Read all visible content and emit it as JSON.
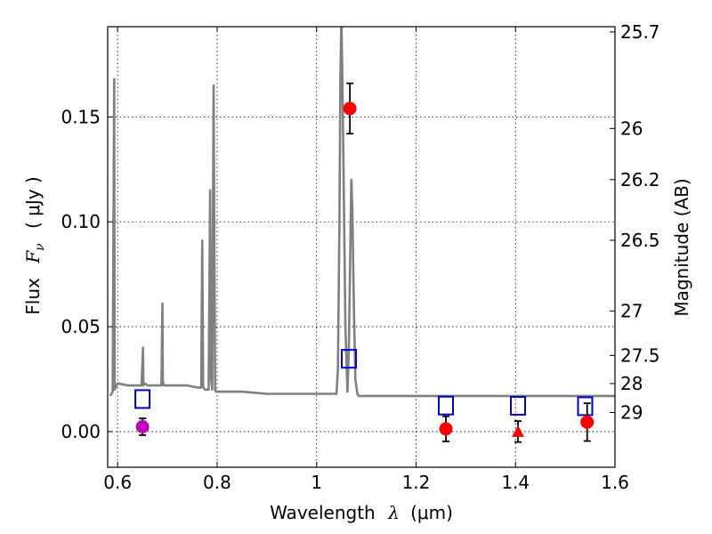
{
  "chart_data": {
    "type": "line",
    "title": "",
    "xlabel_prefix": "Wavelength",
    "xlabel_symbol": "λ",
    "xlabel_unit": "(μm)",
    "ylabel_prefix": "Flux",
    "ylabel_symbol": "F",
    "ylabel_subscript": "ν",
    "ylabel_unit": "( μJy )",
    "y2label": "Magnitude (AB)",
    "xlim": [
      0.58,
      1.6
    ],
    "ylim": [
      -0.017,
      0.193
    ],
    "grid": true,
    "x_ticks": [
      {
        "v": 0.6,
        "label": "0.6"
      },
      {
        "v": 0.8,
        "label": "0.8"
      },
      {
        "v": 1.0,
        "label": "1"
      },
      {
        "v": 1.2,
        "label": "1.2"
      },
      {
        "v": 1.4,
        "label": "1.4"
      },
      {
        "v": 1.6,
        "label": "1.6"
      }
    ],
    "y_ticks": [
      {
        "v": 0.0,
        "label": "0.00"
      },
      {
        "v": 0.05,
        "label": "0.05"
      },
      {
        "v": 0.1,
        "label": "0.10"
      },
      {
        "v": 0.15,
        "label": "0.15"
      }
    ],
    "mag_ticks": [
      {
        "v": 0.1905,
        "label": "25.7"
      },
      {
        "v": 0.1445,
        "label": "26"
      },
      {
        "v": 0.1201,
        "label": "26.2"
      },
      {
        "v": 0.0912,
        "label": "26.5"
      },
      {
        "v": 0.0575,
        "label": "27"
      },
      {
        "v": 0.0363,
        "label": "27.5"
      },
      {
        "v": 0.0229,
        "label": "28"
      },
      {
        "v": 0.0091,
        "label": "29"
      }
    ],
    "series": [
      {
        "kind": "model-spectrum",
        "color": "#808080",
        "x": [
          0.585,
          0.59,
          0.593,
          0.594,
          0.596,
          0.6,
          0.62,
          0.64,
          0.648,
          0.651,
          0.652,
          0.654,
          0.66,
          0.68,
          0.688,
          0.69,
          0.691,
          0.693,
          0.7,
          0.72,
          0.74,
          0.76,
          0.768,
          0.77,
          0.772,
          0.776,
          0.783,
          0.786,
          0.788,
          0.79,
          0.793,
          0.796,
          0.798,
          0.8,
          0.82,
          0.85,
          0.9,
          0.95,
          1.0,
          1.04,
          1.043,
          1.046,
          1.048,
          1.05,
          1.052,
          1.055,
          1.058,
          1.062,
          1.065,
          1.068,
          1.07,
          1.072,
          1.075,
          1.078,
          1.082,
          1.085,
          1.09,
          1.1,
          1.15,
          1.2,
          1.25,
          1.3,
          1.35,
          1.4,
          1.45,
          1.5,
          1.55,
          1.6
        ],
        "y": [
          0.017,
          0.019,
          0.168,
          0.02,
          0.021,
          0.023,
          0.022,
          0.022,
          0.022,
          0.04,
          0.022,
          0.023,
          0.022,
          0.022,
          0.022,
          0.061,
          0.024,
          0.022,
          0.022,
          0.022,
          0.022,
          0.021,
          0.021,
          0.091,
          0.021,
          0.02,
          0.02,
          0.115,
          0.025,
          0.02,
          0.165,
          0.02,
          0.019,
          0.019,
          0.019,
          0.019,
          0.018,
          0.018,
          0.018,
          0.018,
          0.03,
          0.1,
          0.17,
          0.197,
          0.165,
          0.11,
          0.05,
          0.019,
          0.04,
          0.09,
          0.12,
          0.105,
          0.06,
          0.025,
          0.018,
          0.017,
          0.017,
          0.017,
          0.017,
          0.017,
          0.017,
          0.017,
          0.017,
          0.017,
          0.017,
          0.017,
          0.017,
          0.017
        ]
      },
      {
        "kind": "model-photometry",
        "marker": "open-square",
        "color": "#0000cc",
        "points": [
          {
            "x": 0.65,
            "y": 0.0155
          },
          {
            "x": 1.065,
            "y": 0.0347
          },
          {
            "x": 1.26,
            "y": 0.0124
          },
          {
            "x": 1.405,
            "y": 0.0123
          },
          {
            "x": 1.54,
            "y": 0.0121
          }
        ]
      },
      {
        "kind": "observed",
        "marker": "filled-circle",
        "color": "#ff0000",
        "points": [
          {
            "x": 1.067,
            "y": 0.154,
            "err": 0.012
          },
          {
            "x": 1.26,
            "y": 0.0013,
            "err": 0.006
          },
          {
            "x": 1.544,
            "y": 0.0045,
            "err": 0.009
          }
        ]
      },
      {
        "kind": "observed-upper-limit",
        "marker": "filled-triangle",
        "color": "#ff0000",
        "points": [
          {
            "x": 1.405,
            "y": 0.0,
            "err": 0.005
          }
        ]
      },
      {
        "kind": "observed",
        "marker": "filled-circle",
        "color": "#bf00bf",
        "points": [
          {
            "x": 0.65,
            "y": 0.0023,
            "err": 0.004
          }
        ]
      }
    ]
  }
}
